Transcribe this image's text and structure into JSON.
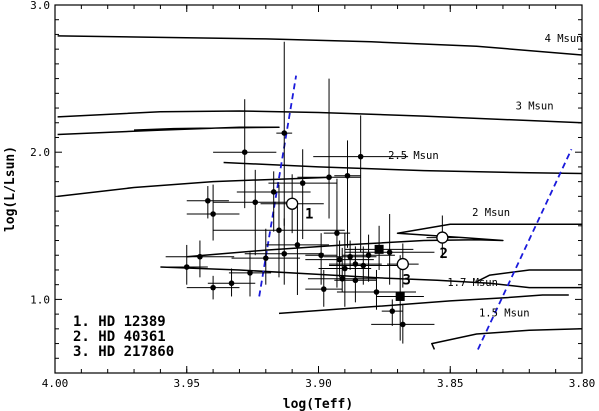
{
  "chart_data": {
    "type": "scatter",
    "xlabel": "log(Teff)",
    "ylabel": "log(L/Lsun)",
    "xlim": [
      4.0,
      3.8
    ],
    "ylim": [
      0.5,
      3.0
    ],
    "x_ticks": [
      {
        "v": 4.0,
        "t": "4.00"
      },
      {
        "v": 3.95,
        "t": "3.95"
      },
      {
        "v": 3.9,
        "t": "3.90"
      },
      {
        "v": 3.85,
        "t": "3.85"
      },
      {
        "v": 3.8,
        "t": "3.80"
      }
    ],
    "y_ticks": [
      {
        "v": 1.0,
        "t": "1.0"
      },
      {
        "v": 2.0,
        "t": "2.0"
      },
      {
        "v": 3.0,
        "t": "3.0"
      }
    ],
    "tracks": [
      {
        "label": "4 Msun",
        "label_pos": [
          3.807,
          2.75
        ],
        "points": [
          [
            3.999,
            2.79
          ],
          [
            3.96,
            2.78
          ],
          [
            3.92,
            2.77
          ],
          [
            3.88,
            2.75
          ],
          [
            3.84,
            2.72
          ],
          [
            3.8,
            2.66
          ]
        ]
      },
      {
        "label": "3 Msun",
        "label_pos": [
          3.818,
          2.29
        ],
        "points": [
          [
            3.999,
            2.24
          ],
          [
            3.96,
            2.275
          ],
          [
            3.93,
            2.28
          ],
          [
            3.9,
            2.27
          ],
          [
            3.86,
            2.245
          ],
          [
            3.8,
            2.2
          ]
        ]
      },
      {
        "label": "",
        "points": [
          [
            3.999,
            2.12
          ],
          [
            3.96,
            2.15
          ],
          [
            3.93,
            2.17
          ],
          [
            3.915,
            2.17
          ],
          [
            3.955,
            2.16
          ],
          [
            3.97,
            2.15
          ]
        ]
      },
      {
        "label": "2.5 Msun",
        "label_pos": [
          3.864,
          1.955
        ],
        "points": [
          [
            3.999,
            1.7
          ],
          [
            3.97,
            1.76
          ],
          [
            3.94,
            1.8
          ],
          [
            3.91,
            1.82
          ],
          [
            3.895,
            1.83
          ]
        ]
      },
      {
        "label": "",
        "points": [
          [
            3.936,
            1.93
          ],
          [
            3.9,
            1.9
          ],
          [
            3.86,
            1.875
          ],
          [
            3.82,
            1.86
          ],
          [
            3.8,
            1.855
          ]
        ]
      },
      {
        "label": "2 Msun",
        "label_pos": [
          3.8345,
          1.565
        ],
        "points": [
          [
            3.95,
            1.29
          ],
          [
            3.92,
            1.335
          ],
          [
            3.89,
            1.37
          ],
          [
            3.86,
            1.4
          ],
          [
            3.84,
            1.405
          ],
          [
            3.83,
            1.4
          ],
          [
            3.845,
            1.42
          ],
          [
            3.87,
            1.45
          ],
          [
            3.85,
            1.51
          ],
          [
            3.8,
            1.51
          ]
        ]
      },
      {
        "label": "1.7 Msun",
        "label_pos": [
          3.8415,
          1.09
        ],
        "points": [
          [
            3.96,
            1.22
          ],
          [
            3.93,
            1.2
          ],
          [
            3.9,
            1.17
          ],
          [
            3.875,
            1.145
          ],
          [
            3.855,
            1.13
          ],
          [
            3.835,
            1.11
          ],
          [
            3.82,
            1.08
          ],
          [
            3.8,
            1.08
          ]
        ]
      },
      {
        "label": "",
        "points": [
          [
            3.8,
            1.2
          ],
          [
            3.82,
            1.2
          ],
          [
            3.835,
            1.165
          ],
          [
            3.84,
            1.12
          ]
        ]
      },
      {
        "label": "",
        "points": [
          [
            3.915,
            0.905
          ],
          [
            3.88,
            0.95
          ],
          [
            3.85,
            0.99
          ],
          [
            3.83,
            1.01
          ],
          [
            3.815,
            1.03
          ],
          [
            3.805,
            1.03
          ]
        ]
      },
      {
        "label": "1.5 Msun",
        "label_pos": [
          3.8295,
          0.885
        ],
        "points": [
          [
            3.856,
            0.66
          ],
          [
            3.857,
            0.7
          ],
          [
            3.84,
            0.765
          ],
          [
            3.82,
            0.79
          ],
          [
            3.8,
            0.8
          ]
        ]
      }
    ],
    "boundaries": [
      {
        "points": [
          [
            3.9225,
            1.02
          ],
          [
            3.9085,
            2.52
          ]
        ]
      },
      {
        "points": [
          [
            3.8395,
            0.66
          ],
          [
            3.804,
            2.02
          ]
        ]
      }
    ],
    "stars": [
      {
        "x": 3.928,
        "y": 2.0,
        "xerr": 0.012,
        "ylo": 1.62,
        "yhi": 2.36
      },
      {
        "x": 3.942,
        "y": 1.67,
        "xerr": 0.008,
        "ylo": 1.55,
        "yhi": 1.77
      },
      {
        "x": 3.94,
        "y": 1.58,
        "xerr": 0.01,
        "ylo": 1.4,
        "yhi": 1.78
      },
      {
        "x": 3.913,
        "y": 2.13,
        "xerr": 0.003,
        "ylo": 1.5,
        "yhi": 2.75
      },
      {
        "x": 3.917,
        "y": 1.73,
        "xerr": 0.014,
        "ylo": 1.46,
        "yhi": 1.87
      },
      {
        "x": 3.924,
        "y": 1.66,
        "xerr": 0.016,
        "ylo": 1.3,
        "yhi": 1.88
      },
      {
        "x": 3.915,
        "y": 1.47,
        "xerr": 0.025,
        "ylo": 1.15,
        "yhi": 1.78
      },
      {
        "x": 3.908,
        "y": 1.37,
        "xerr": 0.012,
        "ylo": 1.03,
        "yhi": 1.67
      },
      {
        "x": 3.913,
        "y": 1.31,
        "xerr": 0.015,
        "ylo": 1.1,
        "yhi": 1.55
      },
      {
        "x": 3.906,
        "y": 1.79,
        "xerr": 0.013,
        "ylo": 1.41,
        "yhi": 2.02
      },
      {
        "x": 3.899,
        "y": 1.3,
        "xerr": 0.006,
        "ylo": 1.1,
        "yhi": 1.45
      },
      {
        "x": 3.896,
        "y": 1.83,
        "xerr": 0.012,
        "ylo": 1.55,
        "yhi": 2.5
      },
      {
        "x": 3.889,
        "y": 1.84,
        "xerr": 0.005,
        "ylo": 1.35,
        "yhi": 2.08
      },
      {
        "x": 3.884,
        "y": 1.97,
        "xerr": 0.018,
        "ylo": 1.32,
        "yhi": 2.25
      },
      {
        "x": 3.893,
        "y": 1.45,
        "xerr": 0.005,
        "ylo": 1.08,
        "yhi": 1.82
      },
      {
        "x": 3.892,
        "y": 1.27,
        "xerr": 0.013,
        "ylo": 1.15,
        "yhi": 1.4
      },
      {
        "x": 3.89,
        "y": 1.21,
        "xerr": 0.01,
        "ylo": 0.95,
        "yhi": 1.45
      },
      {
        "x": 3.891,
        "y": 1.14,
        "xerr": 0.013,
        "ylo": 1.05,
        "yhi": 1.35
      },
      {
        "x": 3.888,
        "y": 1.29,
        "xerr": 0.01,
        "ylo": 1.2,
        "yhi": 1.4
      },
      {
        "x": 3.886,
        "y": 1.24,
        "xerr": 0.01,
        "ylo": 1.12,
        "yhi": 1.36
      },
      {
        "x": 3.881,
        "y": 1.3,
        "xerr": 0.01,
        "ylo": 1.12,
        "yhi": 1.44
      },
      {
        "x": 3.873,
        "y": 1.32,
        "xerr": 0.017,
        "ylo": 1.1,
        "yhi": 1.58
      },
      {
        "x": 3.883,
        "y": 1.23,
        "xerr": 0.013,
        "ylo": 1.1,
        "yhi": 1.36
      },
      {
        "x": 3.886,
        "y": 1.13,
        "xerr": 0.008,
        "ylo": 0.98,
        "yhi": 1.3
      },
      {
        "x": 3.878,
        "y": 1.05,
        "xerr": 0.015,
        "ylo": 0.93,
        "yhi": 1.2
      },
      {
        "x": 3.868,
        "y": 0.83,
        "xerr": 0.012,
        "ylo": 0.7,
        "yhi": 0.97
      },
      {
        "x": 3.872,
        "y": 0.92,
        "xerr": 0.004,
        "ylo": 0.82,
        "yhi": 1.0
      },
      {
        "x": 3.95,
        "y": 1.22,
        "xerr": 0.008,
        "ylo": 1.1,
        "yhi": 1.37
      },
      {
        "x": 3.945,
        "y": 1.29,
        "xerr": 0.013,
        "ylo": 1.15,
        "yhi": 1.4
      },
      {
        "x": 3.933,
        "y": 1.11,
        "xerr": 0.009,
        "ylo": 1.02,
        "yhi": 1.21
      },
      {
        "x": 3.926,
        "y": 1.18,
        "xerr": 0.008,
        "ylo": 1.02,
        "yhi": 1.32
      },
      {
        "x": 3.92,
        "y": 1.28,
        "xerr": 0.013,
        "ylo": 1.1,
        "yhi": 1.48
      },
      {
        "x": 3.94,
        "y": 1.08,
        "xerr": 0.01,
        "ylo": 1.0,
        "yhi": 1.16
      },
      {
        "x": 3.898,
        "y": 1.07,
        "xerr": 0.007,
        "ylo": 0.95,
        "yhi": 1.2
      }
    ],
    "squares": [
      {
        "x": 3.877,
        "y": 1.34,
        "xerr": 0.013,
        "ylo": 1.2,
        "yhi": 1.5
      },
      {
        "x": 3.869,
        "y": 1.02,
        "xerr": 0.009,
        "ylo": 0.72,
        "yhi": 1.3
      }
    ],
    "highlighted": [
      {
        "id": "1",
        "x": 3.91,
        "y": 1.65,
        "xerr": 0.012,
        "ylo": 1.45,
        "yhi": 1.85,
        "label_pos": [
          3.9035,
          1.55
        ]
      },
      {
        "id": "2",
        "x": 3.853,
        "y": 1.42,
        "xerr": 0.006,
        "ylo": 1.28,
        "yhi": 1.57,
        "label_pos": [
          3.8525,
          1.28
        ]
      },
      {
        "id": "3",
        "x": 3.868,
        "y": 1.24,
        "xerr": 0.006,
        "ylo": 1.08,
        "yhi": 1.38,
        "label_pos": [
          3.8665,
          1.1
        ]
      }
    ],
    "legend_entries": [
      "1. HD 12389",
      "2. HD 40361",
      "3. HD 217860"
    ],
    "legend_position": "bottom-left",
    "grid": false,
    "boundary_color": "#1a1adb"
  }
}
